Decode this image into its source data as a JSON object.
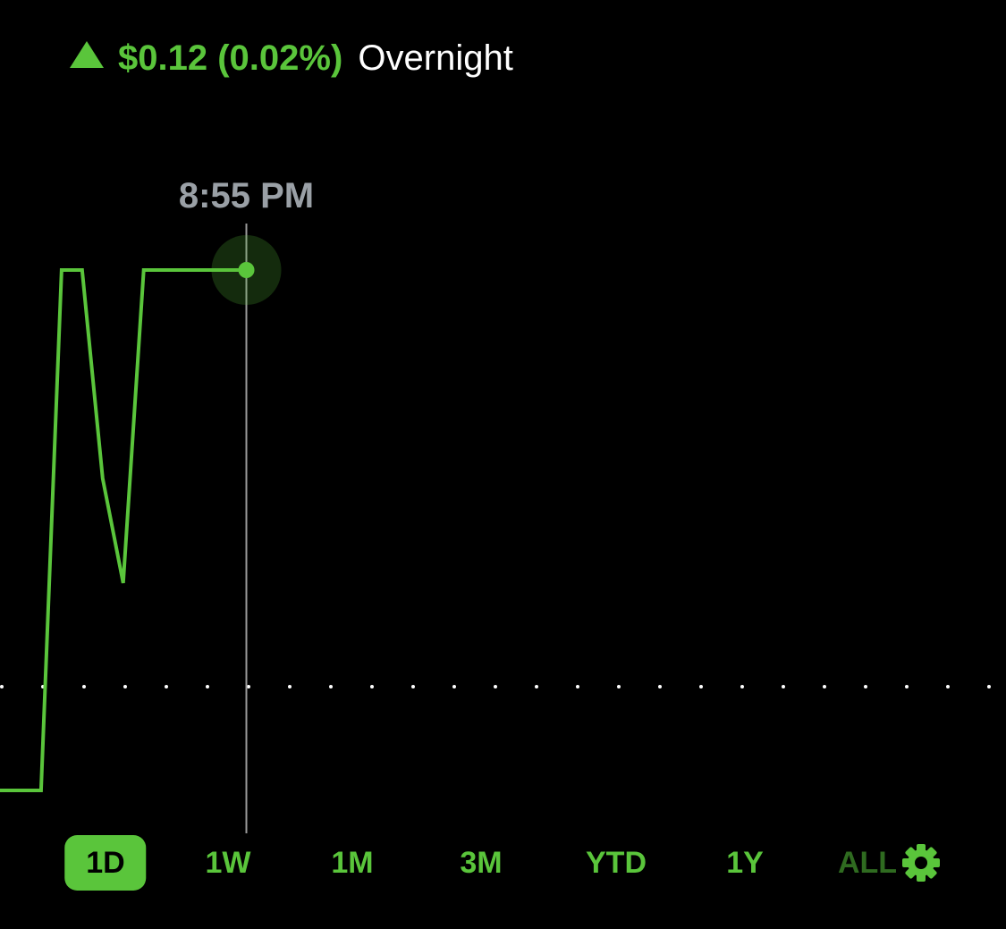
{
  "header": {
    "change": "$0.12 (0.02%)",
    "session": "Overnight"
  },
  "tooltip": "8:55 PM",
  "chart_data": {
    "type": "line",
    "x": [
      0,
      2,
      3,
      4,
      5,
      6,
      7,
      12
    ],
    "series": [
      {
        "color": "#5ac53b",
        "values": [
          0,
          0,
          582,
          582,
          349,
          232,
          582,
          582
        ]
      }
    ],
    "xlim": [
      0,
      49
    ],
    "ylim": [
      0,
      700
    ],
    "reference": 116
  },
  "ranges": {
    "items": [
      "1D",
      "1W",
      "1M",
      "3M",
      "YTD",
      "1Y",
      "ALL"
    ],
    "active": 0
  }
}
